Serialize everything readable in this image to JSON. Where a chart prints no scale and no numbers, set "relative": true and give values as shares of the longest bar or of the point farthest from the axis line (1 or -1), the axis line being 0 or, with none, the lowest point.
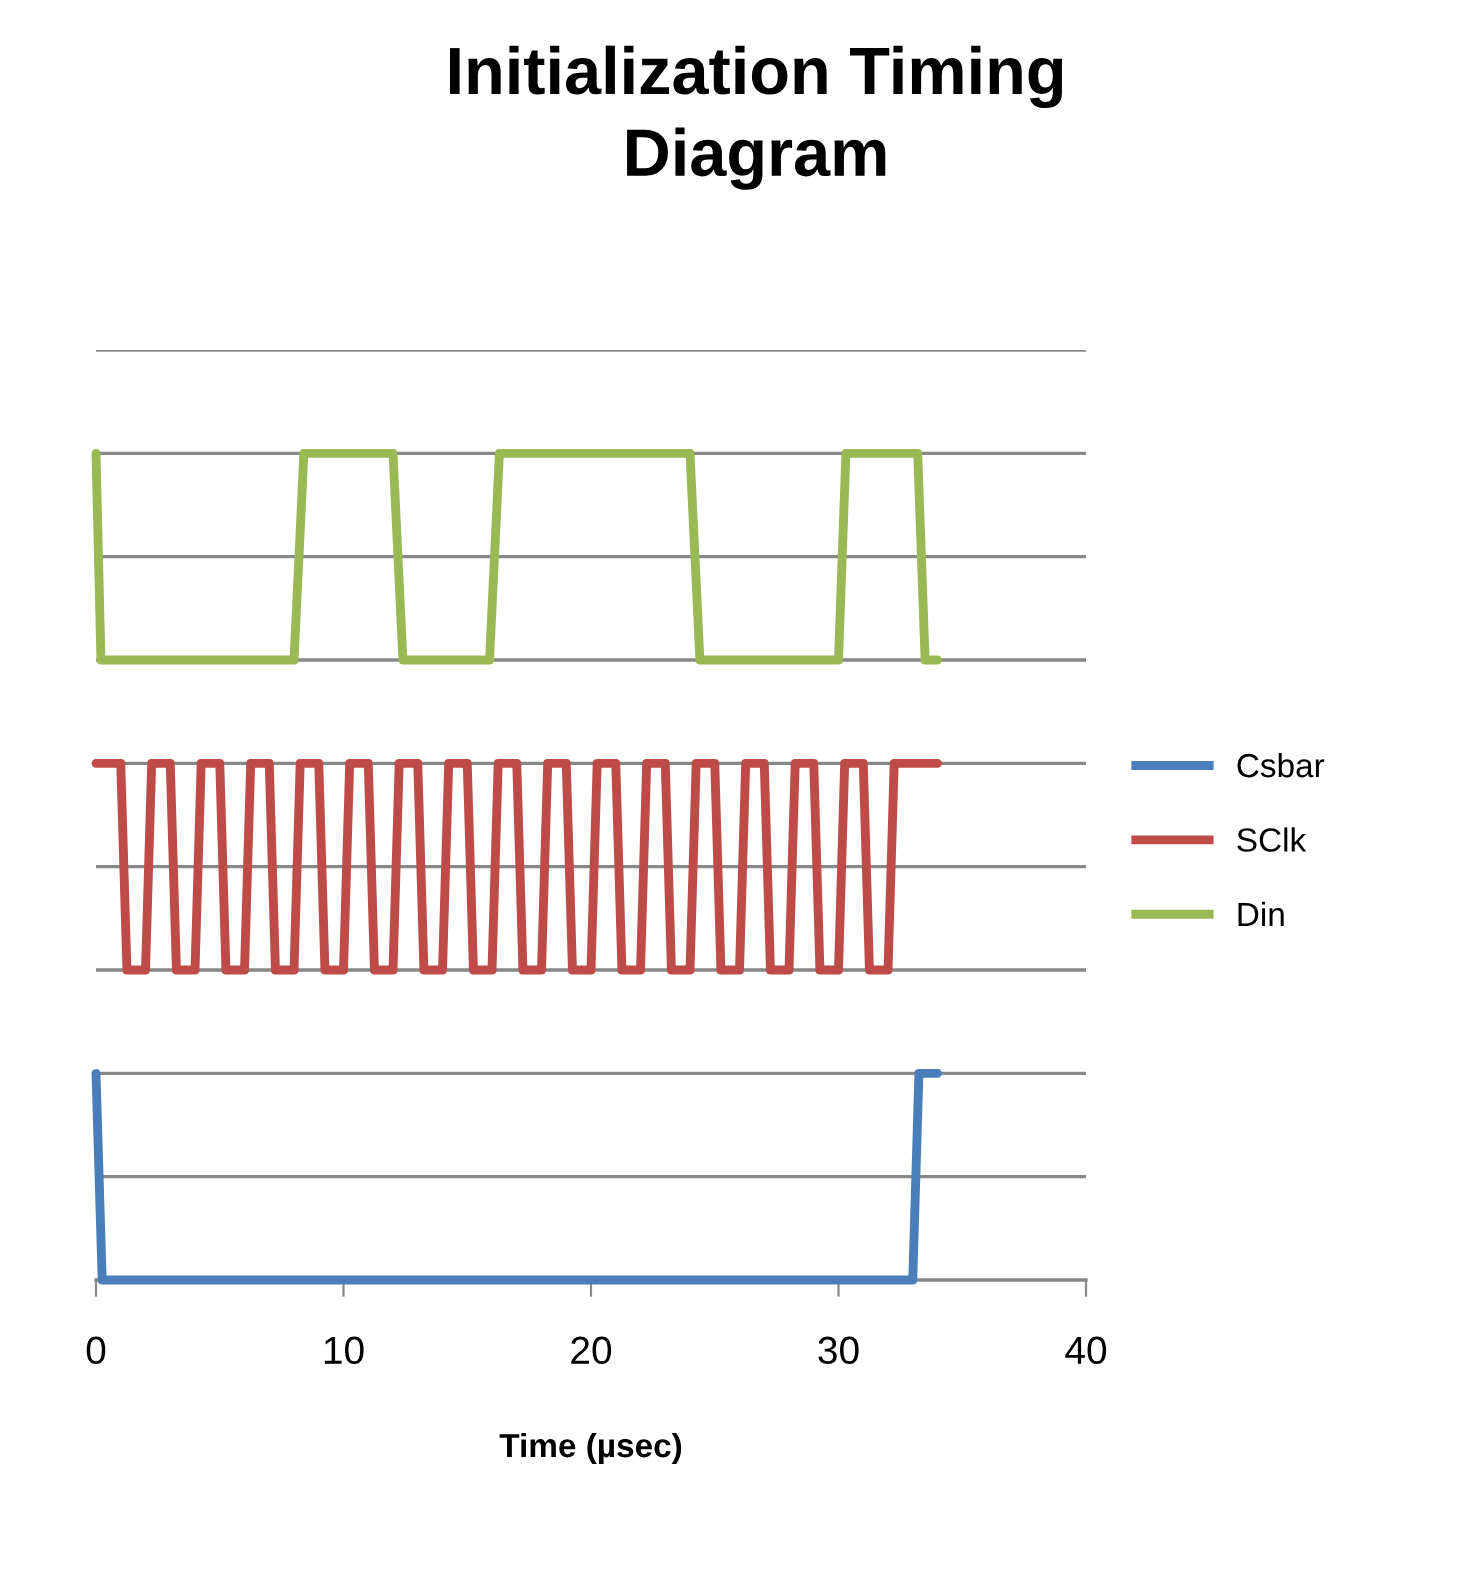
{
  "chart_data": {
    "type": "line",
    "title": "Initialization Timing\nDiagram",
    "xlabel": "Time (µsec)",
    "relative": true,
    "xlim": [
      0,
      40
    ],
    "xticks": [
      0,
      10,
      20,
      30,
      40
    ],
    "grid": "y",
    "legend": "right",
    "marker": "none",
    "line_style": "solid",
    "tick_labels": "x",
    "series": [
      {
        "name": "Csbar",
        "color": "#4a7ebb",
        "x": [
          0,
          0.25,
          33,
          33.25,
          34
        ],
        "values": [
          0.25,
          0,
          0,
          0.25,
          0.25
        ]
      },
      {
        "name": "SClk",
        "color": "#be4b48",
        "x": [
          0,
          1,
          1.25,
          2,
          2.25,
          3,
          3.25,
          4,
          4.25,
          5,
          5.25,
          6,
          6.25,
          7,
          7.25,
          8,
          8.25,
          9,
          9.25,
          10,
          10.25,
          11,
          11.25,
          12,
          12.25,
          13,
          13.25,
          14,
          14.25,
          15,
          15.25,
          16,
          16.25,
          17,
          17.25,
          18,
          18.25,
          19,
          19.25,
          20,
          20.25,
          21,
          21.25,
          22,
          22.25,
          23,
          23.25,
          24,
          24.25,
          25,
          25.25,
          26,
          26.25,
          27,
          27.25,
          28,
          28.25,
          29,
          29.25,
          30,
          30.25,
          31,
          31.25,
          32,
          32.25,
          34
        ],
        "values": [
          0.625,
          0.625,
          0.375,
          0.375,
          0.625,
          0.625,
          0.375,
          0.375,
          0.625,
          0.625,
          0.375,
          0.375,
          0.625,
          0.625,
          0.375,
          0.375,
          0.625,
          0.625,
          0.375,
          0.375,
          0.625,
          0.625,
          0.375,
          0.375,
          0.625,
          0.625,
          0.375,
          0.375,
          0.625,
          0.625,
          0.375,
          0.375,
          0.625,
          0.625,
          0.375,
          0.375,
          0.625,
          0.625,
          0.375,
          0.375,
          0.625,
          0.625,
          0.375,
          0.375,
          0.625,
          0.625,
          0.375,
          0.375,
          0.625,
          0.625,
          0.375,
          0.375,
          0.625,
          0.625,
          0.375,
          0.375,
          0.625,
          0.625,
          0.375,
          0.375,
          0.625,
          0.625,
          0.375,
          0.375,
          0.625,
          0.625
        ]
      },
      {
        "name": "Din",
        "color": "#98b954",
        "x": [
          0,
          0.2,
          8,
          8.4,
          12,
          12.4,
          15.9,
          16.3,
          24,
          24.4,
          30,
          30.3,
          33.2,
          33.5,
          34
        ],
        "values": [
          1,
          0.75,
          0.75,
          1,
          1,
          0.75,
          0.75,
          1,
          1,
          0.75,
          0.75,
          1,
          1,
          0.75,
          0.75
        ]
      }
    ]
  }
}
